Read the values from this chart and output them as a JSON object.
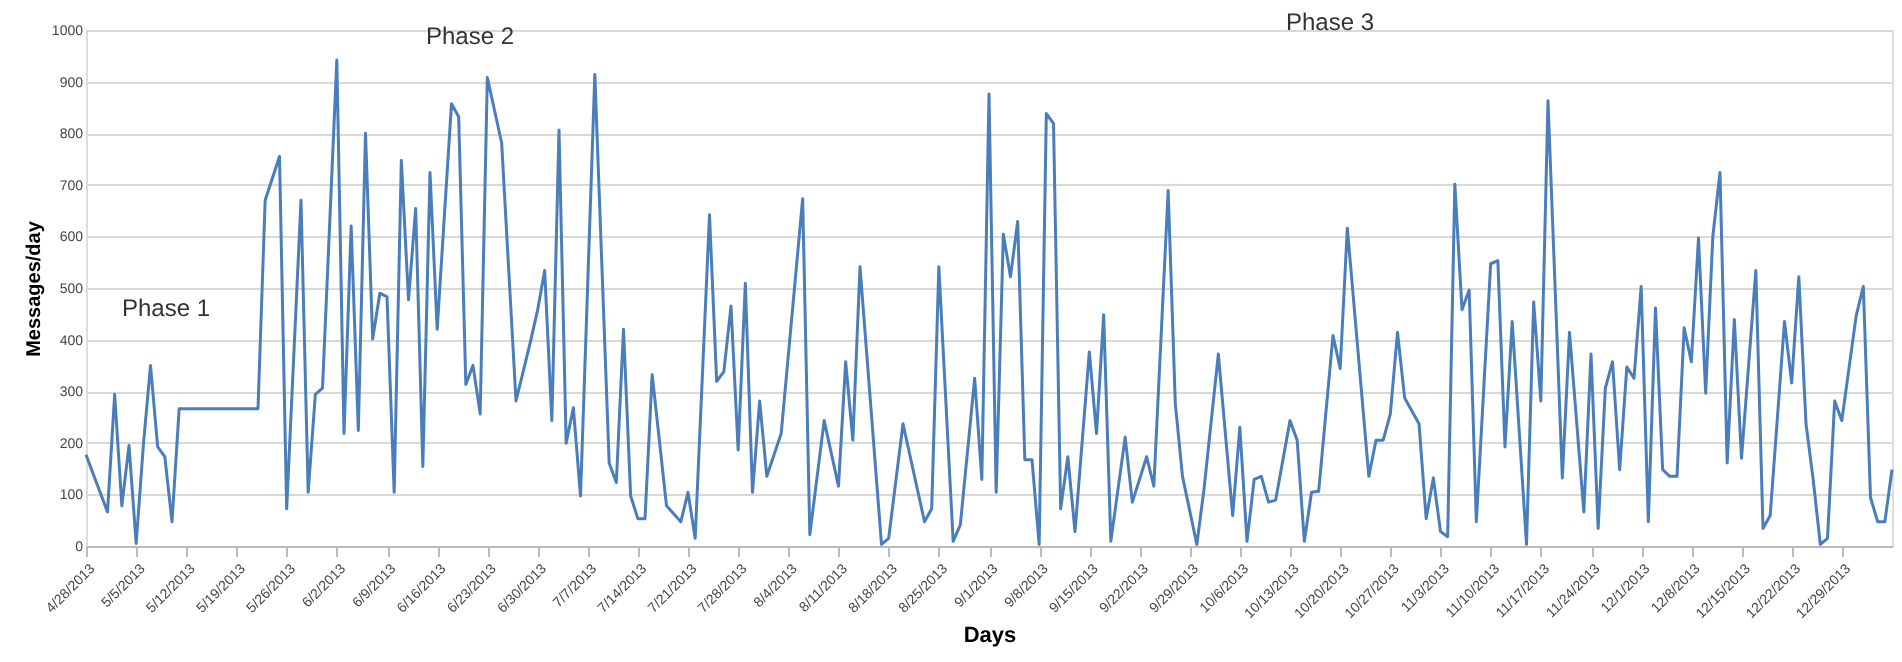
{
  "chart_data": {
    "type": "line",
    "xlabel": "Days",
    "ylabel": "Messages/day",
    "x": [
      "2013-04-28",
      "2013-05-01",
      "2013-05-02",
      "2013-05-03",
      "2013-05-04",
      "2013-05-05",
      "2013-05-06",
      "2013-05-07",
      "2013-05-08",
      "2013-05-09",
      "2013-05-10",
      "2013-05-11",
      "2013-05-22",
      "2013-05-23",
      "2013-05-25",
      "2013-05-26",
      "2013-05-28",
      "2013-05-29",
      "2013-05-30",
      "2013-05-31",
      "2013-06-02",
      "2013-06-03",
      "2013-06-04",
      "2013-06-05",
      "2013-06-06",
      "2013-06-07",
      "2013-06-08",
      "2013-06-09",
      "2013-06-10",
      "2013-06-11",
      "2013-06-12",
      "2013-06-13",
      "2013-06-14",
      "2013-06-15",
      "2013-06-16",
      "2013-06-18",
      "2013-06-19",
      "2013-06-20",
      "2013-06-21",
      "2013-06-22",
      "2013-06-23",
      "2013-06-25",
      "2013-06-27",
      "2013-06-29",
      "2013-06-30",
      "2013-07-01",
      "2013-07-02",
      "2013-07-03",
      "2013-07-04",
      "2013-07-05",
      "2013-07-06",
      "2013-07-08",
      "2013-07-10",
      "2013-07-11",
      "2013-07-12",
      "2013-07-13",
      "2013-07-14",
      "2013-07-15",
      "2013-07-16",
      "2013-07-18",
      "2013-07-20",
      "2013-07-21",
      "2013-07-22",
      "2013-07-24",
      "2013-07-25",
      "2013-07-26",
      "2013-07-27",
      "2013-07-28",
      "2013-07-29",
      "2013-07-30",
      "2013-07-31",
      "2013-08-01",
      "2013-08-03",
      "2013-08-06",
      "2013-08-07",
      "2013-08-09",
      "2013-08-11",
      "2013-08-12",
      "2013-08-13",
      "2013-08-14",
      "2013-08-17",
      "2013-08-18",
      "2013-08-20",
      "2013-08-23",
      "2013-08-24",
      "2013-08-25",
      "2013-08-27",
      "2013-08-28",
      "2013-08-30",
      "2013-08-31",
      "2013-09-01",
      "2013-09-02",
      "2013-09-03",
      "2013-09-04",
      "2013-09-05",
      "2013-09-06",
      "2013-09-07",
      "2013-09-08",
      "2013-09-09",
      "2013-09-10",
      "2013-09-11",
      "2013-09-12",
      "2013-09-13",
      "2013-09-15",
      "2013-09-16",
      "2013-09-17",
      "2013-09-18",
      "2013-09-20",
      "2013-09-21",
      "2013-09-23",
      "2013-09-24",
      "2013-09-26",
      "2013-09-27",
      "2013-09-28",
      "2013-09-30",
      "2013-10-01",
      "2013-10-03",
      "2013-10-05",
      "2013-10-06",
      "2013-10-07",
      "2013-10-08",
      "2013-10-09",
      "2013-10-10",
      "2013-10-11",
      "2013-10-13",
      "2013-10-14",
      "2013-10-15",
      "2013-10-16",
      "2013-10-17",
      "2013-10-19",
      "2013-10-20",
      "2013-10-21",
      "2013-10-24",
      "2013-10-25",
      "2013-10-26",
      "2013-10-27",
      "2013-10-28",
      "2013-10-29",
      "2013-10-31",
      "2013-11-01",
      "2013-11-02",
      "2013-11-03",
      "2013-11-04",
      "2013-11-05",
      "2013-11-06",
      "2013-11-07",
      "2013-11-08",
      "2013-11-10",
      "2013-11-11",
      "2013-11-12",
      "2013-11-13",
      "2013-11-15",
      "2013-11-16",
      "2013-11-17",
      "2013-11-18",
      "2013-11-20",
      "2013-11-21",
      "2013-11-23",
      "2013-11-24",
      "2013-11-25",
      "2013-11-26",
      "2013-11-27",
      "2013-11-28",
      "2013-11-29",
      "2013-11-30",
      "2013-12-01",
      "2013-12-02",
      "2013-12-03",
      "2013-12-04",
      "2013-12-05",
      "2013-12-06",
      "2013-12-07",
      "2013-12-08",
      "2013-12-09",
      "2013-12-10",
      "2013-12-11",
      "2013-12-12",
      "2013-12-13",
      "2013-12-14",
      "2013-12-15",
      "2013-12-17",
      "2013-12-18",
      "2013-12-19",
      "2013-12-21",
      "2013-12-22",
      "2013-12-23",
      "2013-12-24",
      "2013-12-25",
      "2013-12-26",
      "2013-12-27",
      "2013-12-28",
      "2013-12-29",
      "2013-12-31",
      "2014-01-01",
      "2014-01-02",
      "2014-01-03",
      "2014-01-04",
      "2014-01-05"
    ],
    "series": [
      {
        "color": "#4a7ebb",
        "values": [
          177,
          66,
          294,
          78,
          195,
          5,
          195,
          350,
          192,
          173,
          47,
          266,
          266,
          670,
          755,
          72,
          670,
          104,
          294,
          306,
          942,
          218,
          620,
          224,
          800,
          401,
          490,
          483,
          104,
          747,
          477,
          654,
          154,
          724,
          420,
          857,
          832,
          313,
          350,
          256,
          908,
          781,
          281,
          395,
          456,
          534,
          243,
          806,
          199,
          268,
          97,
          914,
          161,
          123,
          420,
          97,
          53,
          53,
          332,
          78,
          47,
          104,
          15,
          642,
          319,
          338,
          465,
          186,
          509,
          104,
          281,
          135,
          218,
          673,
          22,
          243,
          116,
          357,
          205,
          541,
          3,
          15,
          237,
          47,
          72,
          541,
          9,
          41,
          325,
          129,
          876,
          104,
          604,
          522,
          629,
          167,
          167,
          3,
          838,
          819,
          72,
          173,
          28,
          376,
          218,
          448,
          9,
          211,
          85,
          173,
          116,
          689,
          275,
          135,
          3,
          110,
          372,
          59,
          230,
          9,
          129,
          135,
          85,
          89,
          243,
          205,
          9,
          104,
          106,
          408,
          344,
          616,
          135,
          205,
          205,
          256,
          414,
          287,
          237,
          53,
          132,
          28,
          18,
          701,
          458,
          496,
          47,
          547,
          553,
          192,
          435,
          3,
          473,
          281,
          863,
          132,
          414,
          66,
          372,
          34,
          306,
          357,
          148,
          347,
          325,
          503,
          47,
          461,
          148,
          135,
          135,
          423,
          357,
          597,
          296,
          600,
          724,
          161,
          439,
          170,
          534,
          34,
          59,
          435,
          316,
          522,
          237,
          129,
          3,
          15,
          281,
          243,
          446,
          503,
          94,
          47,
          47,
          148
        ]
      }
    ],
    "xlim": [
      "2013-04-28",
      "2014-01-05"
    ],
    "xticks": [
      {
        "value": "2013-04-28",
        "label": "4/28/2013"
      },
      {
        "value": "2013-05-05",
        "label": "5/5/2013"
      },
      {
        "value": "2013-05-12",
        "label": "5/12/2013"
      },
      {
        "value": "2013-05-19",
        "label": "5/19/2013"
      },
      {
        "value": "2013-05-26",
        "label": "5/26/2013"
      },
      {
        "value": "2013-06-02",
        "label": "6/2/2013"
      },
      {
        "value": "2013-06-09",
        "label": "6/9/2013"
      },
      {
        "value": "2013-06-16",
        "label": "6/16/2013"
      },
      {
        "value": "2013-06-23",
        "label": "6/23/2013"
      },
      {
        "value": "2013-06-30",
        "label": "6/30/2013"
      },
      {
        "value": "2013-07-07",
        "label": "7/7/2013"
      },
      {
        "value": "2013-07-14",
        "label": "7/14/2013"
      },
      {
        "value": "2013-07-21",
        "label": "7/21/2013"
      },
      {
        "value": "2013-07-28",
        "label": "7/28/2013"
      },
      {
        "value": "2013-08-04",
        "label": "8/4/2013"
      },
      {
        "value": "2013-08-11",
        "label": "8/11/2013"
      },
      {
        "value": "2013-08-18",
        "label": "8/18/2013"
      },
      {
        "value": "2013-08-25",
        "label": "8/25/2013"
      },
      {
        "value": "2013-09-01",
        "label": "9/1/2013"
      },
      {
        "value": "2013-09-08",
        "label": "9/8/2013"
      },
      {
        "value": "2013-09-15",
        "label": "9/15/2013"
      },
      {
        "value": "2013-09-22",
        "label": "9/22/2013"
      },
      {
        "value": "2013-09-29",
        "label": "9/29/2013"
      },
      {
        "value": "2013-10-06",
        "label": "10/6/2013"
      },
      {
        "value": "2013-10-13",
        "label": "10/13/2013"
      },
      {
        "value": "2013-10-20",
        "label": "10/20/2013"
      },
      {
        "value": "2013-10-27",
        "label": "10/27/2013"
      },
      {
        "value": "2013-11-03",
        "label": "11/3/2013"
      },
      {
        "value": "2013-11-10",
        "label": "11/10/2013"
      },
      {
        "value": "2013-11-17",
        "label": "11/17/2013"
      },
      {
        "value": "2013-11-24",
        "label": "11/24/2013"
      },
      {
        "value": "2013-12-01",
        "label": "12/1/2013"
      },
      {
        "value": "2013-12-08",
        "label": "12/8/2013"
      },
      {
        "value": "2013-12-15",
        "label": "12/15/2013"
      },
      {
        "value": "2013-12-22",
        "label": "12/22/2013"
      },
      {
        "value": "2013-12-29",
        "label": "12/29/2013"
      }
    ],
    "ylim": [
      0,
      1000
    ],
    "yticks": [
      0,
      100,
      200,
      300,
      400,
      500,
      600,
      700,
      800,
      900,
      1000
    ],
    "grid": "y",
    "marker": "none",
    "line_style": "solid",
    "annotations": [
      "Phase 1",
      "Phase 2",
      "Phase 3"
    ]
  }
}
